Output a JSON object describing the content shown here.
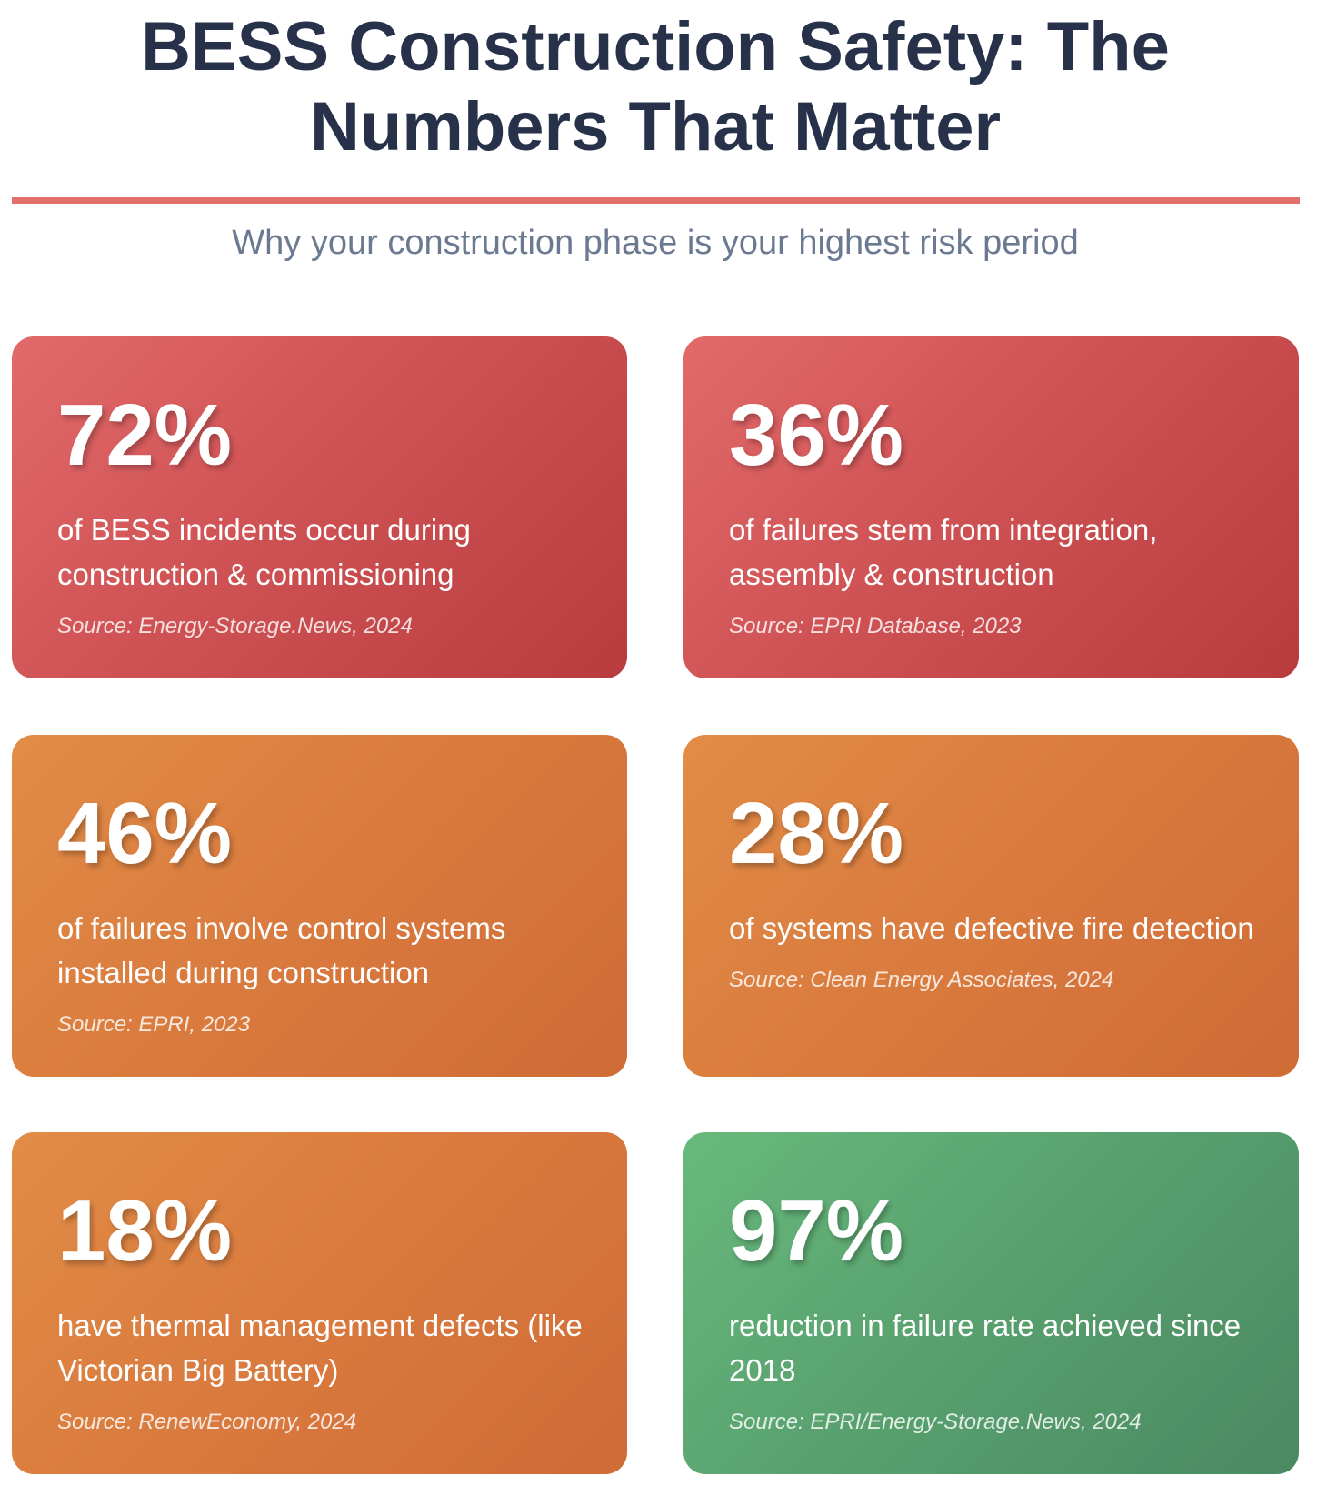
{
  "header": {
    "title": "BESS Construction Safety: The Numbers That Matter",
    "subtitle": "Why your construction phase is your highest risk period",
    "rule_color": "#e4706b"
  },
  "colors": {
    "title": "#27324a",
    "subtitle": "#6b7a90",
    "card_red": "#cf5254",
    "card_orange": "#d97a3e",
    "card_green": "#58a06e"
  },
  "cards": [
    {
      "stat": "72%",
      "description": "of BESS incidents occur during construction & commissioning",
      "source": "Source: Energy-Storage.News, 2024",
      "theme": "red"
    },
    {
      "stat": "36%",
      "description": "of failures stem from integration, assembly & construction",
      "source": "Source: EPRI Database, 2023",
      "theme": "red"
    },
    {
      "stat": "46%",
      "description": "of failures involve control systems installed during construction",
      "source": "Source: EPRI, 2023",
      "theme": "orange"
    },
    {
      "stat": "28%",
      "description": "of systems have defective fire detection",
      "source": "Source: Clean Energy Associates, 2024",
      "theme": "orange"
    },
    {
      "stat": "18%",
      "description": "have thermal management defects (like Victorian Big Battery)",
      "source": "Source: RenewEconomy, 2024",
      "theme": "orange"
    },
    {
      "stat": "97%",
      "description": "reduction in failure rate achieved since 2018",
      "source": "Source: EPRI/Energy-Storage.News, 2024",
      "theme": "green"
    }
  ]
}
